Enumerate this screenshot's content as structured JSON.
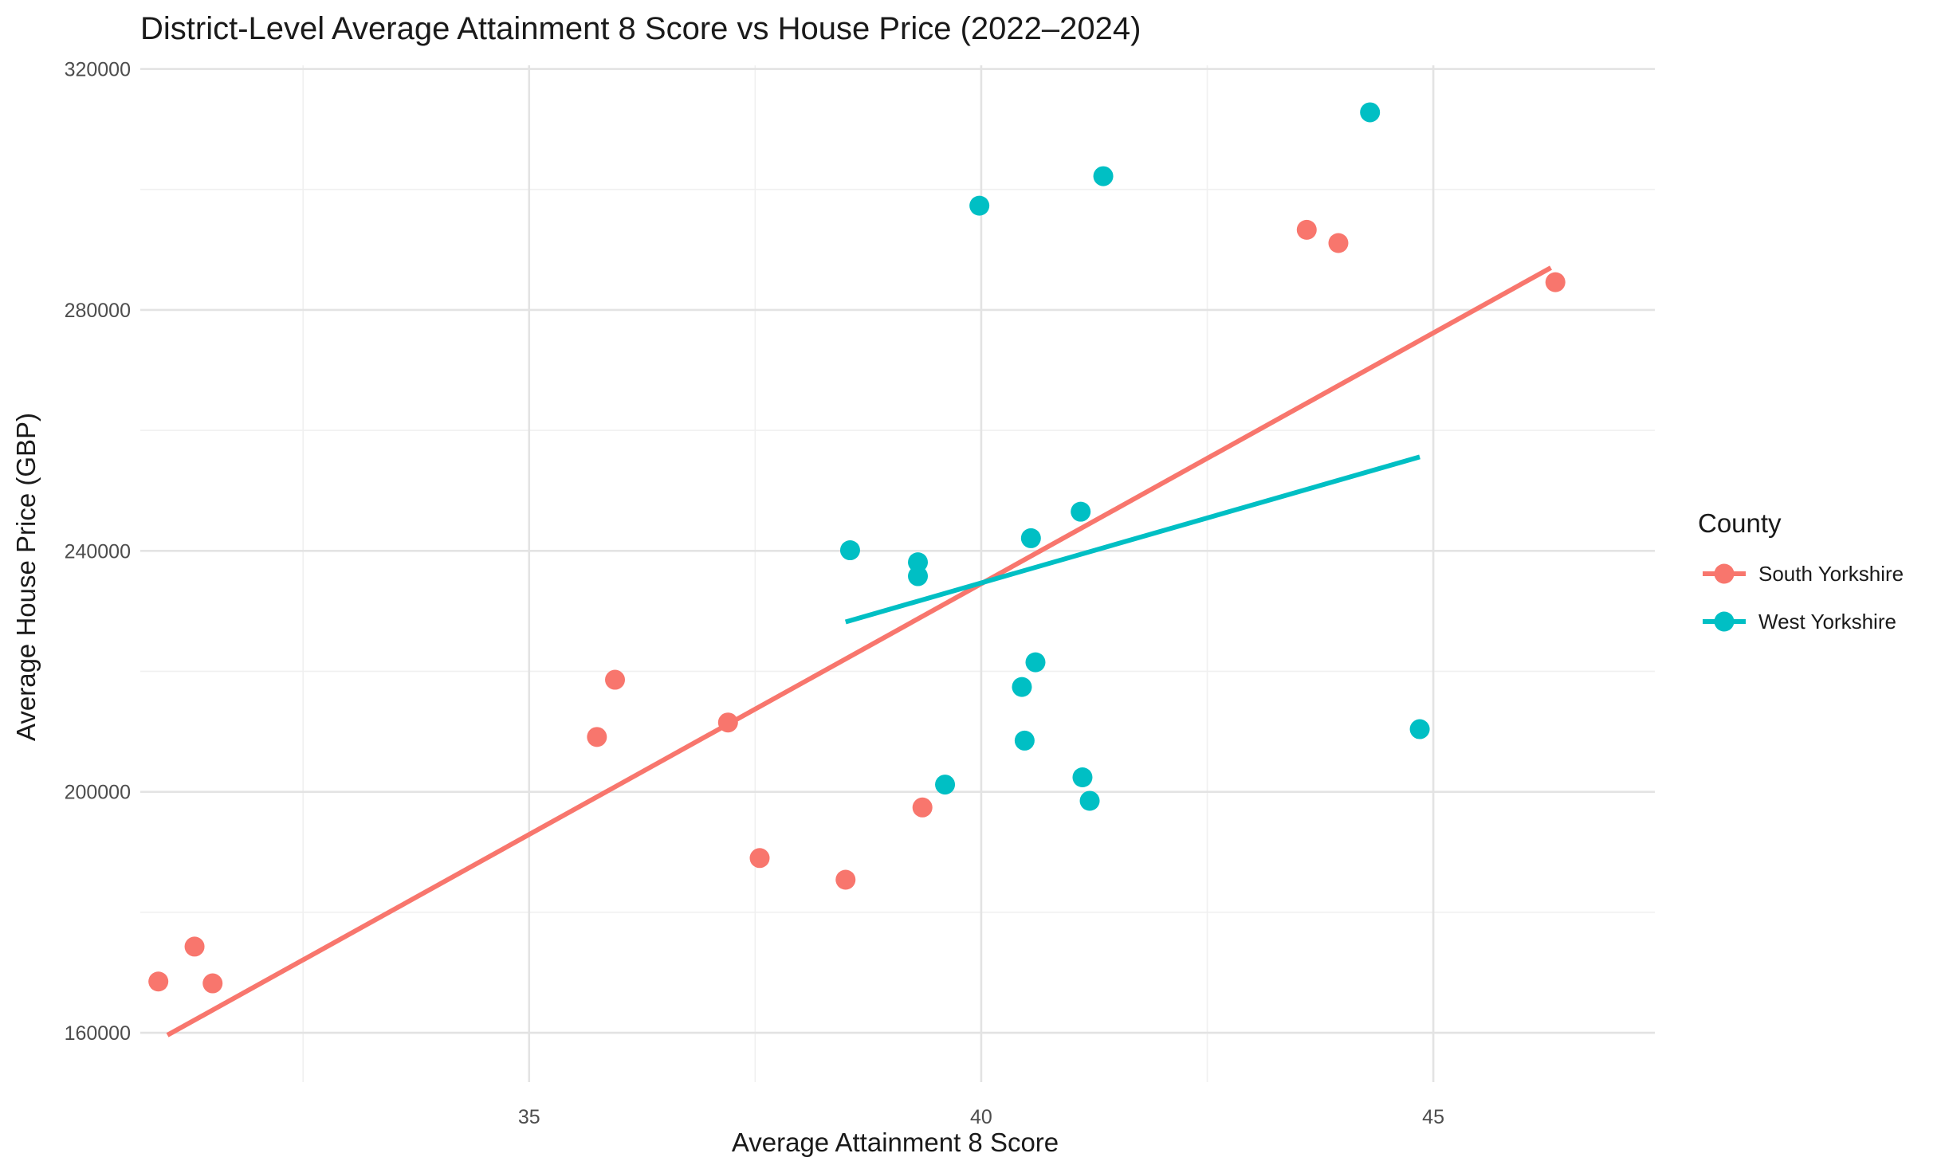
{
  "chart_data": {
    "type": "scatter",
    "title": "District-Level Average Attainment 8 Score vs House Price (2022–2024)",
    "xlabel": "Average Attainment 8 Score",
    "ylabel": "Average House Price (GBP)",
    "xlim": [
      30.7,
      47.45
    ],
    "ylim": [
      151800,
      320600
    ],
    "x_ticks": [
      35,
      40,
      45
    ],
    "x_tick_labels": [
      "35",
      "40",
      "45"
    ],
    "y_ticks": [
      160000,
      200000,
      240000,
      280000,
      320000
    ],
    "y_tick_labels": [
      "160000",
      "200000",
      "240000",
      "280000",
      "320000"
    ],
    "grid": true,
    "legend": {
      "title": "County",
      "position": "right"
    },
    "series": [
      {
        "name": "South Yorkshire",
        "color": "#F8766D",
        "points": [
          {
            "x": 30.9,
            "y": 168500
          },
          {
            "x": 31.3,
            "y": 174300
          },
          {
            "x": 31.5,
            "y": 168200
          },
          {
            "x": 35.75,
            "y": 209100
          },
          {
            "x": 35.95,
            "y": 218600
          },
          {
            "x": 37.2,
            "y": 211500
          },
          {
            "x": 37.55,
            "y": 189000
          },
          {
            "x": 38.5,
            "y": 185400
          },
          {
            "x": 39.35,
            "y": 197400
          },
          {
            "x": 43.6,
            "y": 293300
          },
          {
            "x": 43.95,
            "y": 291100
          },
          {
            "x": 46.35,
            "y": 284600
          }
        ],
        "trend": {
          "x": [
            31.0,
            46.3
          ],
          "y": [
            159600,
            287000
          ]
        }
      },
      {
        "name": "West Yorkshire",
        "color": "#00BFC4",
        "points": [
          {
            "x": 38.55,
            "y": 240100
          },
          {
            "x": 39.3,
            "y": 238100
          },
          {
            "x": 39.3,
            "y": 235800
          },
          {
            "x": 39.6,
            "y": 201200
          },
          {
            "x": 39.98,
            "y": 297300
          },
          {
            "x": 40.45,
            "y": 217400
          },
          {
            "x": 40.48,
            "y": 208500
          },
          {
            "x": 40.55,
            "y": 242100
          },
          {
            "x": 40.6,
            "y": 221500
          },
          {
            "x": 41.1,
            "y": 246500
          },
          {
            "x": 41.12,
            "y": 202400
          },
          {
            "x": 41.2,
            "y": 198500
          },
          {
            "x": 41.35,
            "y": 302200
          },
          {
            "x": 44.3,
            "y": 312800
          },
          {
            "x": 44.85,
            "y": 210400
          }
        ],
        "trend": {
          "x": [
            38.5,
            44.85
          ],
          "y": [
            228200,
            255600
          ]
        }
      }
    ]
  }
}
